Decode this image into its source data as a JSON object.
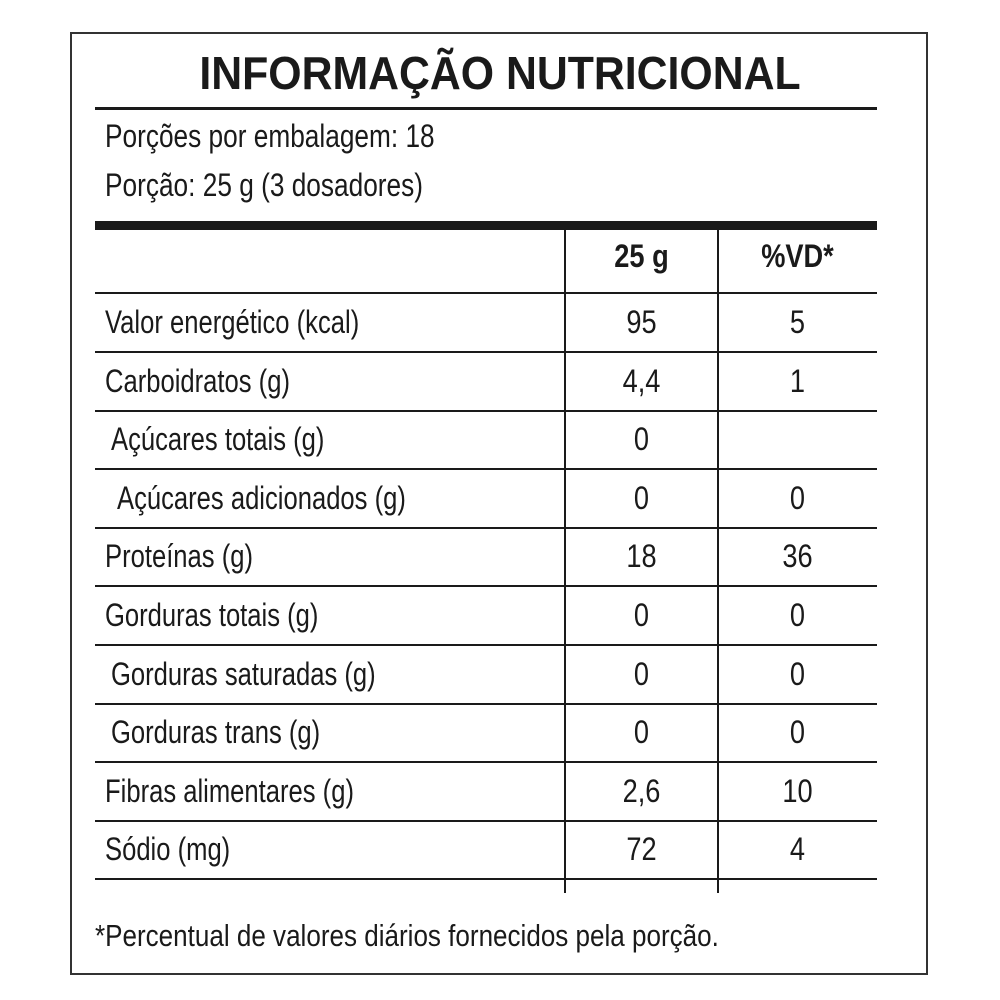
{
  "title": "INFORMAÇÃO NUTRICIONAL",
  "servings_per_package": "Porções por embalagem: 18",
  "serving_size": "Porção: 25 g (3 dosadores)",
  "columns": [
    "25 g",
    "%VD*"
  ],
  "rows": [
    {
      "label": "Valor energético (kcal)",
      "amount": "95",
      "dv": "5",
      "indent": 0
    },
    {
      "label": "Carboidratos (g)",
      "amount": "4,4",
      "dv": "1",
      "indent": 0
    },
    {
      "label": "Açúcares totais (g)",
      "amount": "0",
      "dv": "",
      "indent": 1
    },
    {
      "label": "Açúcares adicionados (g)",
      "amount": "0",
      "dv": "0",
      "indent": 2
    },
    {
      "label": "Proteínas (g)",
      "amount": "18",
      "dv": "36",
      "indent": 0
    },
    {
      "label": "Gorduras totais (g)",
      "amount": "0",
      "dv": "0",
      "indent": 0
    },
    {
      "label": "Gorduras saturadas (g)",
      "amount": "0",
      "dv": "0",
      "indent": 1
    },
    {
      "label": "Gorduras trans (g)",
      "amount": "0",
      "dv": "0",
      "indent": 1
    },
    {
      "label": "Fibras alimentares (g)",
      "amount": "2,6",
      "dv": "10",
      "indent": 0
    },
    {
      "label": "Sódio (mg)",
      "amount": "72",
      "dv": "4",
      "indent": 0
    }
  ],
  "footnote": "*Percentual de valores diários fornecidos pela porção."
}
